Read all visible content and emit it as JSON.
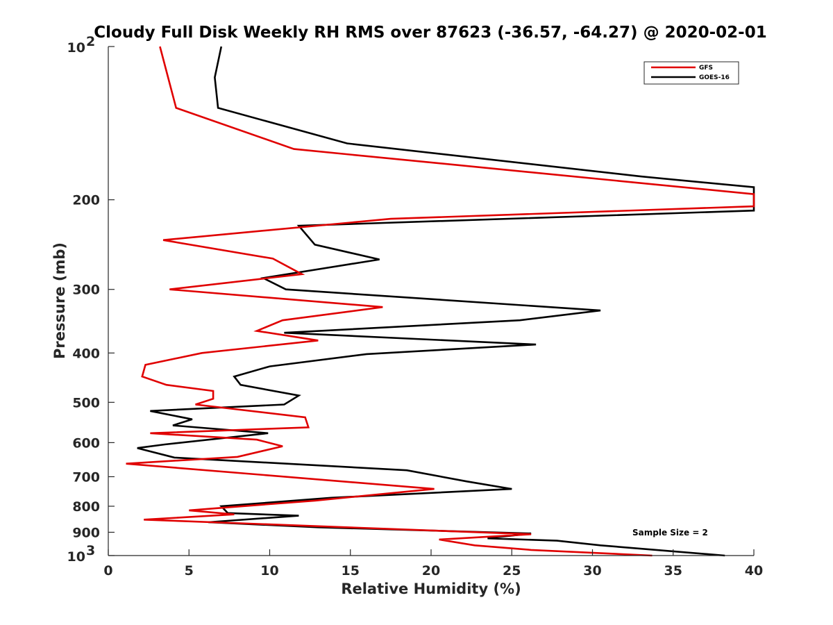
{
  "chart_data": {
    "type": "line",
    "title": "Cloudy Full Disk Weekly RH RMS over 87623 (-36.57, -64.27) @ 2020-02-01",
    "xlabel": "Relative Humidity (%)",
    "ylabel": "Pressure (mb)",
    "xlim": [
      0,
      40
    ],
    "ylim": [
      100,
      1000
    ],
    "y_scale": "log",
    "y_reversed": true,
    "grid": false,
    "x_ticks": [
      "0",
      "5",
      "10",
      "15",
      "20",
      "25",
      "30",
      "35",
      "40"
    ],
    "y_ticks": [
      {
        "value": 100,
        "label": "10",
        "sup": "2"
      },
      {
        "value": 200,
        "label": "200",
        "sup": ""
      },
      {
        "value": 300,
        "label": "300",
        "sup": ""
      },
      {
        "value": 400,
        "label": "400",
        "sup": ""
      },
      {
        "value": 500,
        "label": "500",
        "sup": ""
      },
      {
        "value": 600,
        "label": "600",
        "sup": ""
      },
      {
        "value": 700,
        "label": "700",
        "sup": ""
      },
      {
        "value": 800,
        "label": "800",
        "sup": ""
      },
      {
        "value": 900,
        "label": "900",
        "sup": ""
      },
      {
        "value": 1000,
        "label": "10",
        "sup": "3"
      }
    ],
    "legend_position": "top-right",
    "annotation": "Sample Size = 2",
    "series": [
      {
        "name": "GFS",
        "color": "#e00000",
        "points": [
          [
            3.2,
            100
          ],
          [
            4.2,
            132
          ],
          [
            11.5,
            159
          ],
          [
            40,
            195
          ],
          [
            40,
            206
          ],
          [
            17.5,
            218
          ],
          [
            3.4,
            240
          ],
          [
            10.2,
            261
          ],
          [
            12.0,
            280
          ],
          [
            3.8,
            300
          ],
          [
            17.0,
            325
          ],
          [
            10.8,
            345
          ],
          [
            9.2,
            362
          ],
          [
            13.0,
            378
          ],
          [
            5.8,
            400
          ],
          [
            2.3,
            422
          ],
          [
            2.1,
            445
          ],
          [
            3.6,
            462
          ],
          [
            6.5,
            475
          ],
          [
            6.5,
            492
          ],
          [
            5.4,
            505
          ],
          [
            12.2,
            535
          ],
          [
            12.4,
            560
          ],
          [
            2.6,
            575
          ],
          [
            9.2,
            592
          ],
          [
            10.8,
            610
          ],
          [
            8.0,
            640
          ],
          [
            1.1,
            660
          ],
          [
            20.2,
            740
          ],
          [
            12.8,
            780
          ],
          [
            5.0,
            815
          ],
          [
            7.8,
            830
          ],
          [
            2.2,
            850
          ],
          [
            26.2,
            908
          ],
          [
            20.5,
            930
          ],
          [
            22.7,
            955
          ],
          [
            26.2,
            975
          ],
          [
            33.7,
            1000
          ]
        ]
      },
      {
        "name": "GOES-16",
        "color": "#000000",
        "points": [
          [
            7.0,
            100
          ],
          [
            6.6,
            115
          ],
          [
            6.8,
            132
          ],
          [
            14.8,
            155
          ],
          [
            33.0,
            180
          ],
          [
            40,
            189
          ],
          [
            40,
            210
          ],
          [
            11.8,
            225
          ],
          [
            12.8,
            245
          ],
          [
            16.8,
            262
          ],
          [
            9.6,
            285
          ],
          [
            11.0,
            300
          ],
          [
            30.5,
            330
          ],
          [
            25.5,
            345
          ],
          [
            10.9,
            365
          ],
          [
            26.5,
            385
          ],
          [
            16.0,
            402
          ],
          [
            10.0,
            425
          ],
          [
            7.8,
            445
          ],
          [
            8.2,
            462
          ],
          [
            11.8,
            485
          ],
          [
            10.9,
            505
          ],
          [
            2.6,
            520
          ],
          [
            5.2,
            540
          ],
          [
            4.0,
            555
          ],
          [
            9.9,
            575
          ],
          [
            3.5,
            605
          ],
          [
            1.8,
            615
          ],
          [
            4.1,
            642
          ],
          [
            18.5,
            680
          ],
          [
            22.2,
            715
          ],
          [
            25.0,
            740
          ],
          [
            13.8,
            770
          ],
          [
            7.0,
            800
          ],
          [
            7.4,
            825
          ],
          [
            11.8,
            835
          ],
          [
            6.2,
            860
          ],
          [
            13.0,
            880
          ],
          [
            26.2,
            905
          ],
          [
            23.5,
            925
          ],
          [
            27.8,
            935
          ],
          [
            30.5,
            955
          ],
          [
            38.2,
            1000
          ]
        ]
      }
    ]
  }
}
